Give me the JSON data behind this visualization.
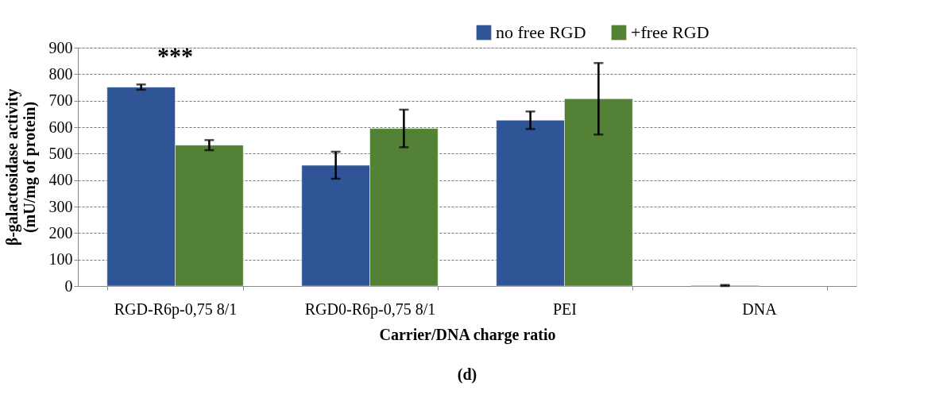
{
  "chart_data": {
    "type": "bar",
    "xlabel": "Carrier/DNA charge ratio",
    "ylabel": "β-galactosidase activity\n(mU/mg of protein)",
    "categories": [
      "RGD-R6p-0,75 8/1",
      "RGD0-R6p-0,75 8/1",
      "PEI",
      "DNA"
    ],
    "series": [
      {
        "name": "no free RGD",
        "color": "#2f5597",
        "values": [
          751,
          456,
          626,
          2
        ],
        "errors": [
          10,
          51,
          33,
          2
        ]
      },
      {
        "name": "+free RGD",
        "color": "#538135",
        "values": [
          532,
          595,
          707,
          null
        ],
        "errors": [
          19,
          71,
          135,
          null
        ]
      }
    ],
    "ylim": [
      0,
      900
    ],
    "yticks": [
      0,
      100,
      200,
      300,
      400,
      500,
      600,
      700,
      800,
      900
    ],
    "grid": "y",
    "legend": "top right",
    "annotations": [
      "***",
      "(d)"
    ]
  }
}
